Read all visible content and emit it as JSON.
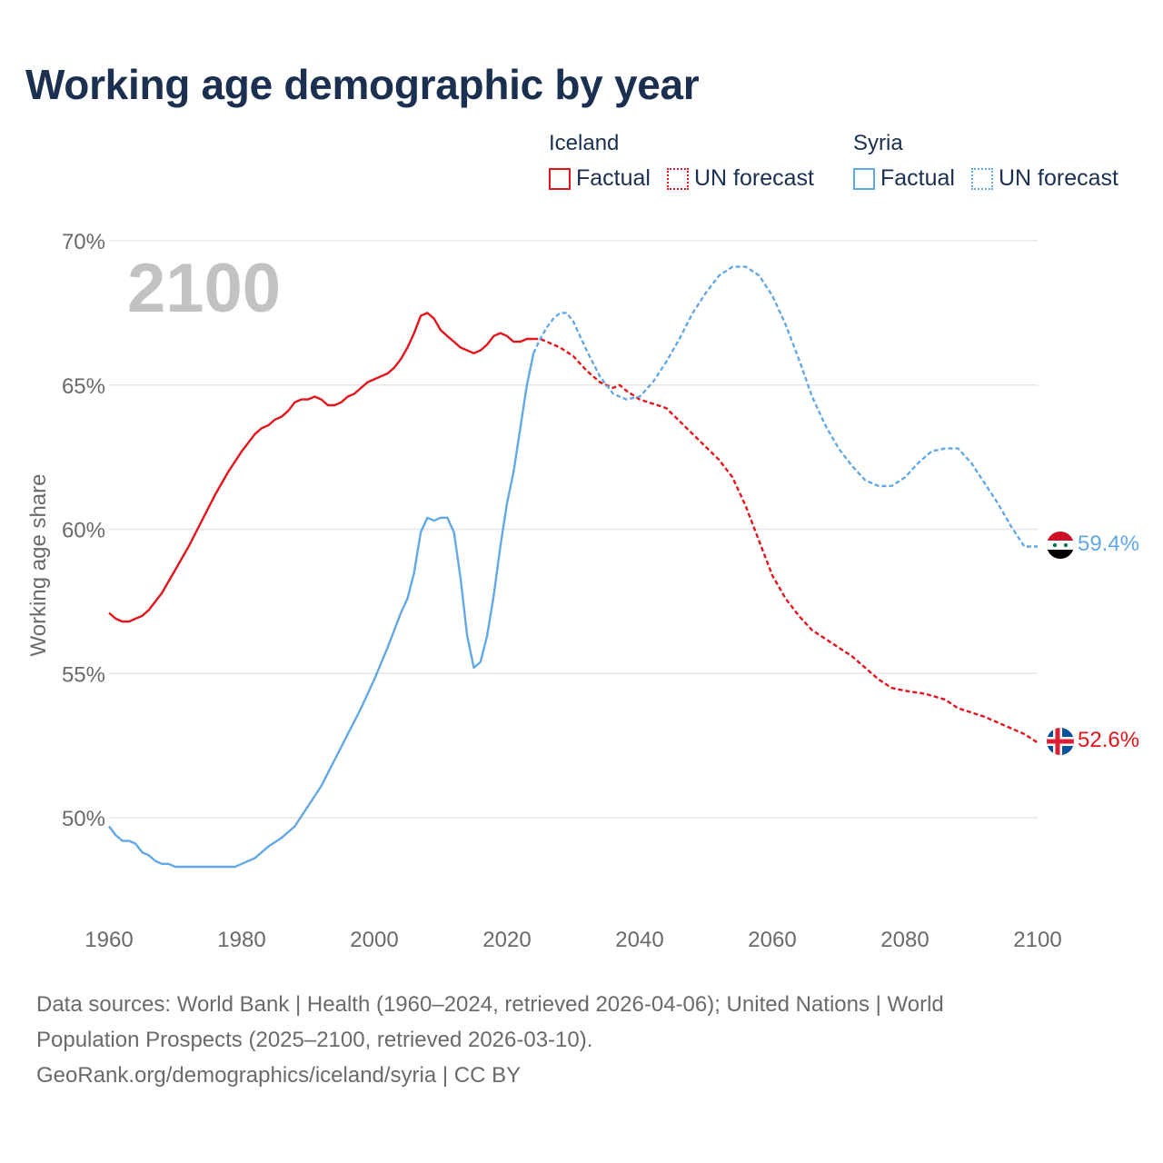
{
  "title": "Working age demographic by year",
  "year_label": "2100",
  "legend": {
    "iceland": {
      "name": "Iceland",
      "factual": "Factual",
      "forecast": "UN forecast"
    },
    "syria": {
      "name": "Syria",
      "factual": "Factual",
      "forecast": "UN forecast"
    }
  },
  "colors": {
    "iceland": "#e3141b",
    "syria": "#62a8e5",
    "grid": "#e6e6e6",
    "year_label": "#c2c2c2"
  },
  "footer": {
    "line1": "Data sources: World Bank | Health (1960–2024, retrieved 2026-04-06); United Nations | World",
    "line2": "Population Prospects (2025–2100, retrieved 2026-03-10).",
    "line3": "GeoRank.org/demographics/iceland/syria | CC BY"
  },
  "chart_data": {
    "type": "line",
    "title": "Working age demographic by year",
    "xlabel": "",
    "ylabel": "Working age share",
    "xlim": [
      1960,
      2100
    ],
    "ylim": [
      46.5,
      70
    ],
    "x_ticks": [
      1960,
      1980,
      2000,
      2020,
      2040,
      2060,
      2080,
      2100
    ],
    "x_tick_labels": [
      "1960",
      "1980",
      "2000",
      "2020",
      "2040",
      "2060",
      "2080",
      "2100"
    ],
    "y_ticks": [
      50,
      55,
      60,
      65,
      70
    ],
    "y_tick_labels": [
      "50%",
      "55%",
      "60%",
      "65%",
      "70%"
    ],
    "grid": true,
    "series": [
      {
        "name": "Iceland",
        "segment": "Factual",
        "color": "#e3141b",
        "dash": "solid",
        "x": [
          1960,
          1961,
          1962,
          1963,
          1964,
          1965,
          1966,
          1967,
          1968,
          1969,
          1970,
          1972,
          1974,
          1976,
          1978,
          1980,
          1982,
          1983,
          1984,
          1985,
          1986,
          1987,
          1988,
          1989,
          1990,
          1991,
          1992,
          1993,
          1994,
          1995,
          1996,
          1997,
          1998,
          1999,
          2000,
          2001,
          2002,
          2003,
          2004,
          2005,
          2006,
          2007,
          2008,
          2009,
          2010,
          2011,
          2012,
          2013,
          2014,
          2015,
          2016,
          2017,
          2018,
          2019,
          2020,
          2021,
          2022,
          2023,
          2024
        ],
        "y": [
          57.1,
          56.9,
          56.8,
          56.8,
          56.9,
          57.0,
          57.2,
          57.5,
          57.8,
          58.2,
          58.6,
          59.4,
          60.3,
          61.2,
          62.0,
          62.7,
          63.3,
          63.5,
          63.6,
          63.8,
          63.9,
          64.1,
          64.4,
          64.5,
          64.5,
          64.6,
          64.5,
          64.3,
          64.3,
          64.4,
          64.6,
          64.7,
          64.9,
          65.1,
          65.2,
          65.3,
          65.4,
          65.6,
          65.9,
          66.3,
          66.8,
          67.4,
          67.5,
          67.3,
          66.9,
          66.7,
          66.5,
          66.3,
          66.2,
          66.1,
          66.2,
          66.4,
          66.7,
          66.8,
          66.7,
          66.5,
          66.5,
          66.6,
          66.6
        ]
      },
      {
        "name": "Iceland",
        "segment": "UN forecast",
        "color": "#e3141b",
        "dash": "dotted",
        "x": [
          2024,
          2025,
          2026,
          2028,
          2030,
          2032,
          2034,
          2036,
          2037,
          2038,
          2040,
          2044,
          2048,
          2052,
          2054,
          2056,
          2058,
          2060,
          2062,
          2064,
          2066,
          2068,
          2070,
          2072,
          2074,
          2076,
          2078,
          2080,
          2083,
          2086,
          2088,
          2092,
          2096,
          2098,
          2100
        ],
        "y": [
          66.6,
          66.6,
          66.5,
          66.3,
          66.0,
          65.5,
          65.1,
          64.9,
          65.0,
          64.8,
          64.5,
          64.2,
          63.3,
          62.4,
          61.8,
          60.8,
          59.6,
          58.4,
          57.6,
          57.0,
          56.5,
          56.2,
          55.9,
          55.6,
          55.2,
          54.8,
          54.5,
          54.4,
          54.3,
          54.1,
          53.8,
          53.5,
          53.1,
          52.9,
          52.6
        ]
      },
      {
        "name": "Syria",
        "segment": "Factual",
        "color": "#62a8e5",
        "dash": "solid",
        "x": [
          1960,
          1961,
          1962,
          1963,
          1964,
          1965,
          1966,
          1967,
          1968,
          1969,
          1970,
          1972,
          1975,
          1978,
          1979,
          1980,
          1982,
          1984,
          1986,
          1988,
          1990,
          1992,
          1994,
          1996,
          1998,
          2000,
          2002,
          2004,
          2005,
          2006,
          2007,
          2008,
          2009,
          2010,
          2011,
          2012,
          2013,
          2014,
          2015,
          2016,
          2017,
          2018,
          2019,
          2020,
          2021,
          2022,
          2023,
          2024
        ],
        "y": [
          49.7,
          49.4,
          49.2,
          49.2,
          49.1,
          48.8,
          48.7,
          48.5,
          48.4,
          48.4,
          48.3,
          48.3,
          48.3,
          48.3,
          48.3,
          48.4,
          48.6,
          49.0,
          49.3,
          49.7,
          50.4,
          51.1,
          52.0,
          52.9,
          53.8,
          54.8,
          55.9,
          57.1,
          57.6,
          58.5,
          59.9,
          60.4,
          60.3,
          60.4,
          60.4,
          59.9,
          58.3,
          56.3,
          55.2,
          55.4,
          56.3,
          57.7,
          59.4,
          60.9,
          62.0,
          63.5,
          65.0,
          66.1
        ]
      },
      {
        "name": "Syria",
        "segment": "UN forecast",
        "color": "#62a8e5",
        "dash": "dotted",
        "x": [
          2024,
          2025,
          2026,
          2027,
          2028,
          2029,
          2030,
          2032,
          2034,
          2036,
          2038,
          2040,
          2042,
          2044,
          2046,
          2048,
          2050,
          2052,
          2054,
          2056,
          2058,
          2060,
          2062,
          2064,
          2066,
          2068,
          2070,
          2072,
          2074,
          2076,
          2078,
          2080,
          2082,
          2084,
          2086,
          2088,
          2090,
          2092,
          2094,
          2096,
          2098,
          2100
        ],
        "y": [
          66.1,
          66.6,
          67.0,
          67.3,
          67.5,
          67.5,
          67.2,
          66.2,
          65.3,
          64.7,
          64.5,
          64.6,
          65.1,
          65.8,
          66.6,
          67.5,
          68.2,
          68.8,
          69.1,
          69.1,
          68.8,
          68.1,
          67.1,
          65.9,
          64.6,
          63.6,
          62.8,
          62.2,
          61.7,
          61.5,
          61.5,
          61.8,
          62.3,
          62.7,
          62.8,
          62.8,
          62.3,
          61.6,
          60.9,
          60.1,
          59.4,
          59.4
        ]
      }
    ],
    "end_labels": [
      {
        "name": "Syria",
        "value": 59.4,
        "label": "59.4%",
        "color": "#62a8e5"
      },
      {
        "name": "Iceland",
        "value": 52.6,
        "label": "52.6%",
        "color": "#e3141b"
      }
    ]
  }
}
